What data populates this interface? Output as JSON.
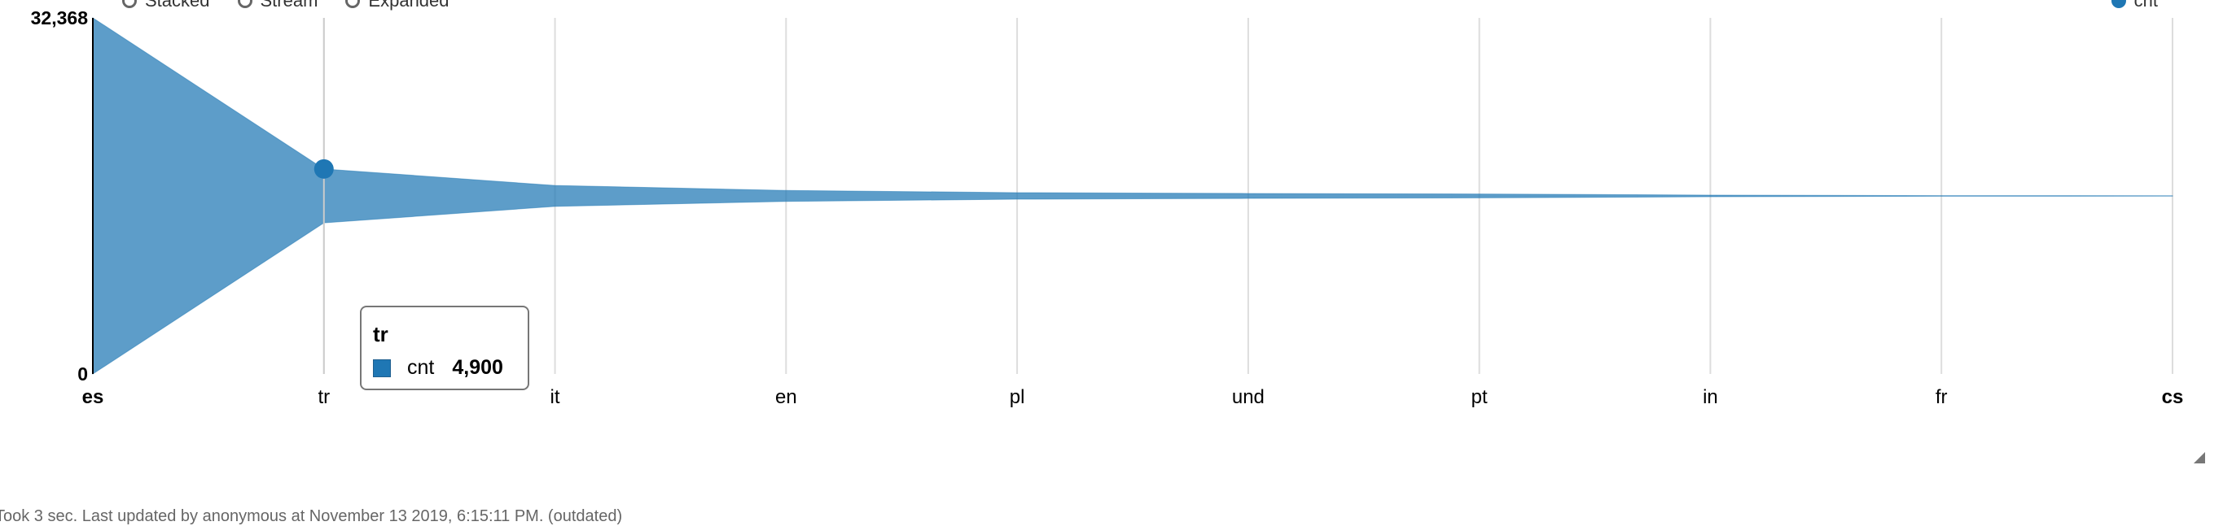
{
  "legend_options": [
    "Stacked",
    "Stream",
    "Expanded"
  ],
  "chart_data": {
    "type": "area",
    "mode": "stream",
    "categories": [
      "es",
      "tr",
      "it",
      "en",
      "pl",
      "und",
      "pt",
      "in",
      "fr",
      "cs"
    ],
    "series": [
      {
        "name": "cnt",
        "color": "#1f77b4",
        "values": [
          32368,
          4900,
          1900,
          1000,
          600,
          450,
          350,
          150,
          60,
          40
        ]
      }
    ],
    "ylim": [
      0,
      32368
    ],
    "y_ticks": [
      "0",
      "32,368"
    ],
    "grid": "vertical"
  },
  "tooltip": {
    "category": "tr",
    "series": "cnt",
    "value": "4,900"
  },
  "footer": {
    "text": "Took 3 sec. Last updated by anonymous at November 13 2019, 6:15:11 PM. (outdated)"
  }
}
